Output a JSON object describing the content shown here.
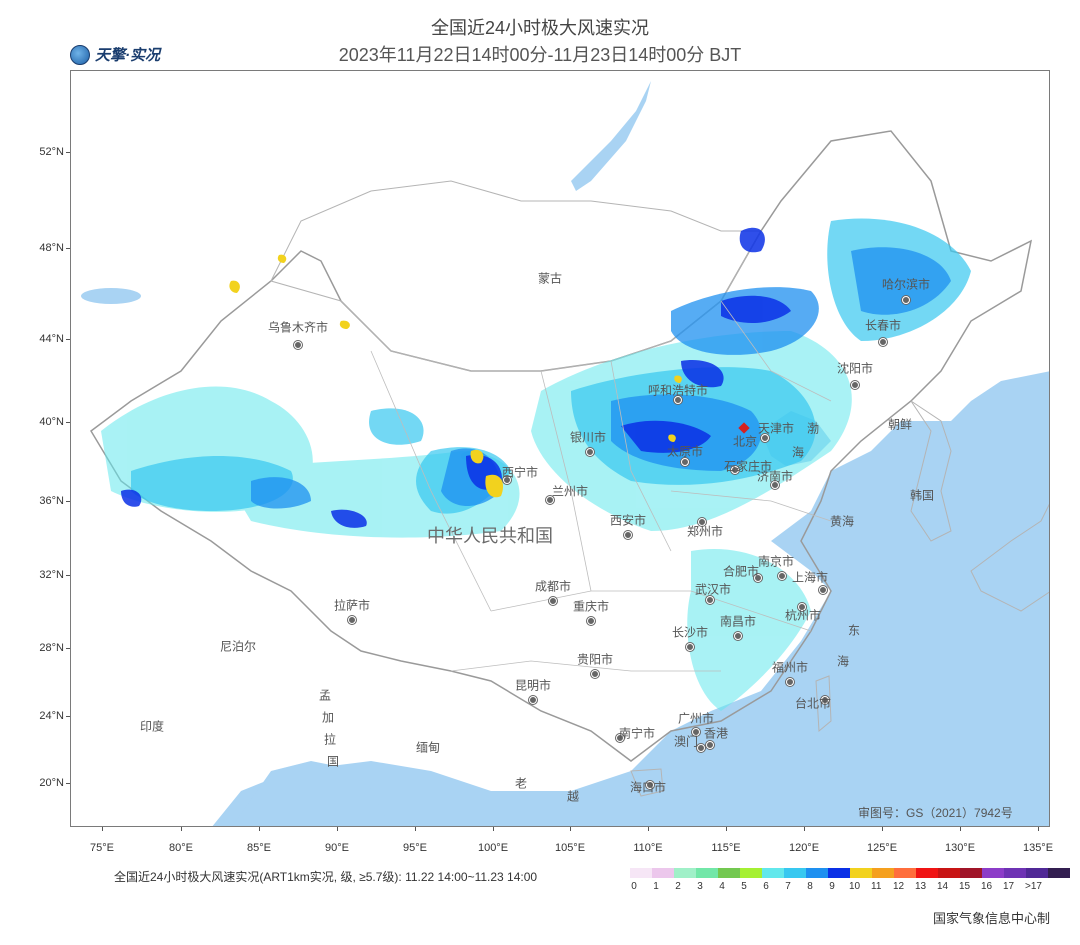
{
  "header": {
    "title": "全国近24小时极大风速实况",
    "subtitle": "2023年11月22日14时00分-11月23日14时00分 BJT",
    "logo_text": "天擎·实况"
  },
  "map": {
    "lat_labels": [
      "52°N",
      "48°N",
      "44°N",
      "40°N",
      "36°N",
      "32°N",
      "28°N",
      "24°N",
      "20°N"
    ],
    "lon_labels": [
      "75°E",
      "80°E",
      "85°E",
      "90°E",
      "95°E",
      "100°E",
      "105°E",
      "110°E",
      "115°E",
      "120°E",
      "125°E",
      "130°E",
      "135°E"
    ],
    "places": {
      "mongolia": "蒙古",
      "china": "中华人民共和国",
      "nepal": "尼泊尔",
      "india": "印度",
      "myanmar": "缅甸",
      "laos": "老",
      "vietnam": "越",
      "korea_n": "朝鲜",
      "korea_s": "韩国",
      "bangladesh_1": "孟",
      "bangladesh_2": "加",
      "bangladesh_3": "拉",
      "bangladesh_4": "国",
      "bohai_1": "渤",
      "bohai_2": "海",
      "yellow_sea": "黄海",
      "east_sea_1": "东",
      "east_sea_2": "海"
    },
    "cities": {
      "urumqi": "乌鲁木齐市",
      "harbin": "哈尔滨市",
      "changchun": "长春市",
      "shenyang": "沈阳市",
      "hohhot": "呼和浩特市",
      "beijing": "北京",
      "tianjin": "天津市",
      "yinchuan": "银川市",
      "taiyuan": "太原市",
      "shijiazhuang": "石家庄市",
      "jinan": "济南市",
      "xining": "西宁市",
      "lanzhou": "兰州市",
      "xian": "西安市",
      "zhengzhou": "郑州市",
      "nanjing": "南京市",
      "hefei": "合肥市",
      "shanghai": "上海市",
      "wuhan": "武汉市",
      "hangzhou": "杭州市",
      "chengdu": "成都市",
      "chongqing": "重庆市",
      "lhasa": "拉萨市",
      "changsha": "长沙市",
      "nanchang": "南昌市",
      "fuzhou": "福州市",
      "guiyang": "贵阳市",
      "kunming": "昆明市",
      "taipei": "台北市",
      "guangzhou": "广州市",
      "nanning": "南宁市",
      "hongkong": "香港",
      "macau": "澳门",
      "haikou": "海口市"
    },
    "review_number": "审图号：GS（2021）7942号"
  },
  "legend": {
    "caption": "全国近24小时极大风速实况(ART1km实况, 级, ≥5.7级): 11.22 14:00~11.23 14:00",
    "levels": [
      "0",
      "1",
      "2",
      "3",
      "4",
      "5",
      "6",
      "7",
      "8",
      "9",
      "10",
      "11",
      "12",
      "13",
      "14",
      "15",
      "16",
      "17",
      ">17"
    ],
    "colors": [
      "#f6e6f6",
      "#ecc7ec",
      "#a0f0c8",
      "#72e7a8",
      "#73c850",
      "#a5f032",
      "#62e8ec",
      "#38c8f0",
      "#1e90f0",
      "#0a30e6",
      "#f2d21e",
      "#f5a01e",
      "#ff6e3c",
      "#f01414",
      "#c81414",
      "#a01428",
      "#8c3cc8",
      "#6e32b4",
      "#502896",
      "#321e50"
    ]
  },
  "footer": {
    "credit": "国家气象信息中心制"
  }
}
